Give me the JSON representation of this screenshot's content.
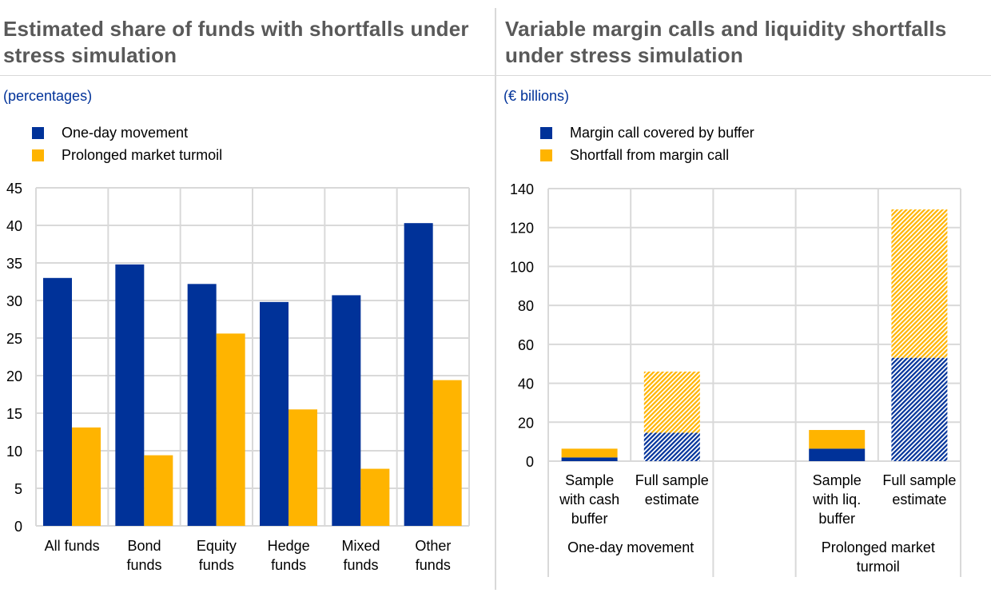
{
  "colors": {
    "blue": "#003299",
    "yellow": "#ffb400",
    "grid": "#d9d9d9",
    "title": "#595959",
    "unit": "#003299"
  },
  "chart_data": [
    {
      "type": "bar",
      "title": "Estimated share of funds with shortfalls under stress simulation",
      "subtitle": "(percentages)",
      "xlabel": "",
      "ylabel": "",
      "ylim": [
        0,
        45
      ],
      "yticks": [
        0,
        5,
        10,
        15,
        20,
        25,
        30,
        35,
        40,
        45
      ],
      "grid": true,
      "legend_position": "top-left",
      "categories": [
        "All funds",
        "Bond funds",
        "Equity funds",
        "Hedge funds",
        "Mixed funds",
        "Other funds"
      ],
      "category_lines": [
        [
          "All funds"
        ],
        [
          "Bond",
          "funds"
        ],
        [
          "Equity",
          "funds"
        ],
        [
          "Hedge",
          "funds"
        ],
        [
          "Mixed",
          "funds"
        ],
        [
          "Other",
          "funds"
        ]
      ],
      "series": [
        {
          "name": "One-day movement",
          "color": "#003299",
          "values": [
            33.0,
            34.8,
            32.2,
            29.8,
            30.7,
            40.3
          ]
        },
        {
          "name": "Prolonged market turmoil",
          "color": "#ffb400",
          "values": [
            13.1,
            9.4,
            25.6,
            15.5,
            7.6,
            19.4
          ]
        }
      ]
    },
    {
      "type": "bar",
      "stacked": true,
      "title": "Variable margin calls and liquidity shortfalls under stress simulation",
      "subtitle": "(€ billions)",
      "xlabel": "",
      "ylabel": "",
      "ylim": [
        0,
        140
      ],
      "yticks": [
        0,
        20,
        40,
        60,
        80,
        100,
        120,
        140
      ],
      "grid": true,
      "legend_position": "top-left",
      "categories": [
        "Sample with cash buffer",
        "Full sample estimate",
        "",
        "Sample with liq. buffer",
        "Full sample estimate"
      ],
      "category_lines": [
        [
          "Sample",
          "with cash",
          "buffer"
        ],
        [
          "Full sample",
          "estimate"
        ],
        [],
        [
          "Sample",
          "with liq.",
          "buffer"
        ],
        [
          "Full sample",
          "estimate"
        ]
      ],
      "hatched": [
        false,
        true,
        false,
        false,
        true
      ],
      "groups": [
        {
          "label_lines": [
            "One-day movement"
          ],
          "span": [
            0,
            2
          ]
        },
        {
          "label_lines": [],
          "span": [
            2,
            3
          ]
        },
        {
          "label_lines": [
            "Prolonged market",
            "turmoil"
          ],
          "span": [
            3,
            5
          ]
        }
      ],
      "series": [
        {
          "name": "Margin call covered by buffer",
          "color": "#003299",
          "values": [
            1.9,
            14.6,
            null,
            6.4,
            53.1
          ]
        },
        {
          "name": "Shortfall from margin call",
          "color": "#ffb400",
          "values": [
            4.5,
            31.4,
            null,
            9.6,
            76.2
          ]
        }
      ]
    }
  ]
}
